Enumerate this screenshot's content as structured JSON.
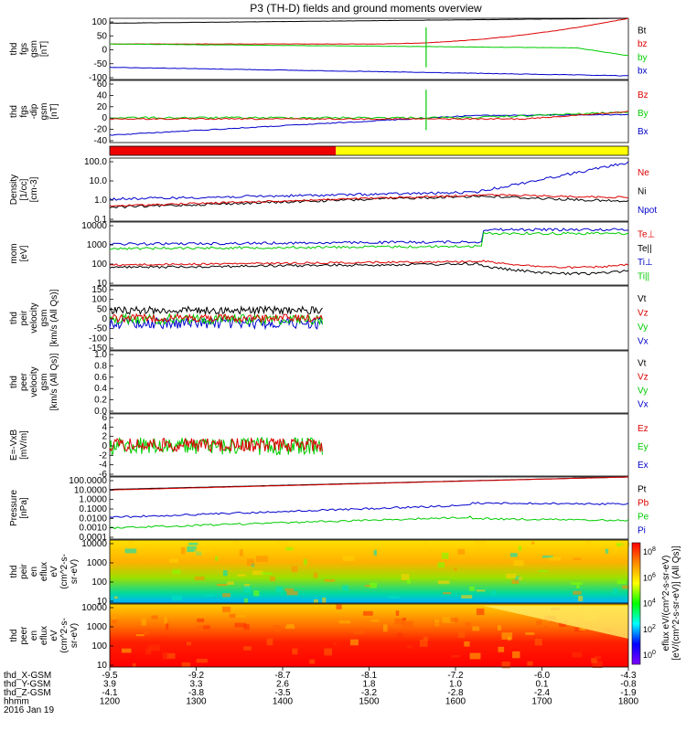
{
  "title": "P3 (TH-D) fields and ground moments overview",
  "footer": {
    "ephem_labels": [
      "thd_X-GSM",
      "thd_Y-GSM",
      "thd_Z-GSM",
      "hhmm",
      "2016 Jan 19"
    ],
    "columns": [
      {
        "x": "-9.5",
        "y": "3.9",
        "z": "-4.1",
        "t": "1200"
      },
      {
        "x": "-9.2",
        "y": "3.3",
        "z": "-3.8",
        "t": "1300"
      },
      {
        "x": "-8.7",
        "y": "2.6",
        "z": "-3.5",
        "t": "1400"
      },
      {
        "x": "-8.1",
        "y": "1.8",
        "z": "-3.2",
        "t": "1500"
      },
      {
        "x": "-7.2",
        "y": "1.0",
        "z": "-2.8",
        "t": "1600"
      },
      {
        "x": "-6.0",
        "y": "0.1",
        "z": "-2.4",
        "t": "1700"
      },
      {
        "x": "-4.3",
        "y": "-0.8",
        "z": "-1.9",
        "t": "1800"
      }
    ]
  },
  "colorbar": {
    "ticks": [
      "10^8",
      "10^6",
      "10^4",
      "10^2",
      "10^0"
    ],
    "label": "[eV/(cm^2-s-sr-eV)] (All Qs)]",
    "label_overprint": "eflux eV/(cm^2-s-sr-eV)",
    "stops": [
      "#ff0000",
      "#ff8c00",
      "#ffff00",
      "#00ff00",
      "#00ffff",
      "#0000ff",
      "#8000ff"
    ]
  },
  "chart_data": [
    {
      "id": "p1",
      "type": "line",
      "ylabel": [
        "thd",
        "fgs",
        "gsm",
        "[nT]"
      ],
      "ytick_labels": [
        "100",
        "50",
        "0",
        "-50",
        "-100"
      ],
      "ylim": [
        -100,
        100
      ],
      "series": [
        {
          "name": "Bt",
          "color": "#000000"
        },
        {
          "name": "bz",
          "color": "#dd0000"
        },
        {
          "name": "by",
          "color": "#00cc00"
        },
        {
          "name": "bx",
          "color": "#0000cc"
        }
      ]
    },
    {
      "id": "p2",
      "type": "line",
      "ylabel": [
        "thd",
        "fgs",
        "-dip",
        "gsm",
        "[nT]"
      ],
      "ytick_labels": [
        "60",
        "40",
        "20",
        "0",
        "-20",
        "-40"
      ],
      "ylim": [
        -50,
        60
      ],
      "series": [
        {
          "name": "Bz",
          "color": "#dd0000"
        },
        {
          "name": "By",
          "color": "#00cc00"
        },
        {
          "name": "Bx",
          "color": "#0000cc"
        }
      ]
    },
    {
      "id": "p3",
      "type": "bar",
      "ylabel": [],
      "ytick_labels": [],
      "bar_colors": [
        "#ee0000",
        "#ffff00"
      ],
      "bar_split_time": "1445"
    },
    {
      "id": "p4",
      "type": "line",
      "ylabel": [
        "Density",
        "[1/cc]",
        "[cm-3]"
      ],
      "ytick_labels": [
        "100.0",
        "10.0",
        "1.0",
        "0.1"
      ],
      "log": true,
      "series": [
        {
          "name": "Ne",
          "color": "#dd0000"
        },
        {
          "name": "Ni",
          "color": "#000000"
        },
        {
          "name": "Npot",
          "color": "#0000cc"
        }
      ]
    },
    {
      "id": "p5",
      "type": "line",
      "ylabel": [
        "mom",
        "[eV]"
      ],
      "ytick_labels": [
        "10000",
        "1000",
        "100",
        "10"
      ],
      "log": true,
      "series": [
        {
          "name": "Te⊥",
          "color": "#dd0000"
        },
        {
          "name": "Te||",
          "color": "#000000"
        },
        {
          "name": "Ti⊥",
          "color": "#0000cc"
        },
        {
          "name": "Ti||",
          "color": "#00cc00"
        }
      ]
    },
    {
      "id": "p6",
      "type": "line",
      "ylabel": [
        "thd",
        "peir",
        "velocity",
        "gsm",
        "[km/s (All Qs)]"
      ],
      "ytick_labels": [
        "150",
        "100",
        "50",
        "0",
        "-50",
        "-100",
        "-150"
      ],
      "ylim": [
        -150,
        150
      ],
      "series": [
        {
          "name": "Vt",
          "color": "#000000"
        },
        {
          "name": "Vz",
          "color": "#dd0000"
        },
        {
          "name": "Vy",
          "color": "#00cc00"
        },
        {
          "name": "Vx",
          "color": "#0000cc"
        }
      ]
    },
    {
      "id": "p7",
      "type": "line",
      "ylabel": [
        "thd",
        "peer",
        "velocity",
        "gsm",
        "[km/s (All Qs)]"
      ],
      "ytick_labels": [
        "1.0",
        "0.8",
        "0.6",
        "0.4",
        "0.2",
        "0.0"
      ],
      "ylim": [
        0,
        1
      ],
      "series": [
        {
          "name": "Vt",
          "color": "#000000"
        },
        {
          "name": "Vz",
          "color": "#dd0000"
        },
        {
          "name": "Vy",
          "color": "#00cc00"
        },
        {
          "name": "Vx",
          "color": "#0000cc"
        }
      ]
    },
    {
      "id": "p8",
      "type": "line",
      "ylabel": [
        "E=-VxB",
        "[mV/m]"
      ],
      "ytick_labels": [
        "6",
        "4",
        "2",
        "0",
        "-2",
        "-4",
        "-6"
      ],
      "ylim": [
        -6,
        6
      ],
      "series": [
        {
          "name": "Ez",
          "color": "#dd0000"
        },
        {
          "name": "Ey",
          "color": "#00cc00"
        },
        {
          "name": "Ex",
          "color": "#0000cc"
        }
      ]
    },
    {
      "id": "p9",
      "type": "line",
      "ylabel": [
        "Pressure",
        "[nPa]"
      ],
      "ytick_labels": [
        "100.0000",
        "10.0000",
        "1.0000",
        "0.1000",
        "0.0100",
        "0.0010",
        "0.0001"
      ],
      "log": true,
      "series": [
        {
          "name": "Pt",
          "color": "#000000"
        },
        {
          "name": "Pb",
          "color": "#dd0000"
        },
        {
          "name": "Pe",
          "color": "#00cc00"
        },
        {
          "name": "Pi",
          "color": "#0000cc"
        }
      ]
    },
    {
      "id": "p10",
      "type": "heatmap",
      "ylabel": [
        "thd",
        "peir",
        "en",
        "eflux",
        "eV",
        "(cm^2-s-",
        "sr-eV)"
      ],
      "ytick_labels": [
        "10000",
        "1000",
        "100",
        "10"
      ]
    },
    {
      "id": "p11",
      "type": "heatmap",
      "ylabel": [
        "thd",
        "peer",
        "en",
        "eflux",
        "eV",
        "(cm^2-s-",
        "sr-eV)"
      ],
      "ytick_labels": [
        "10000",
        "1000",
        "100",
        "10"
      ]
    }
  ]
}
